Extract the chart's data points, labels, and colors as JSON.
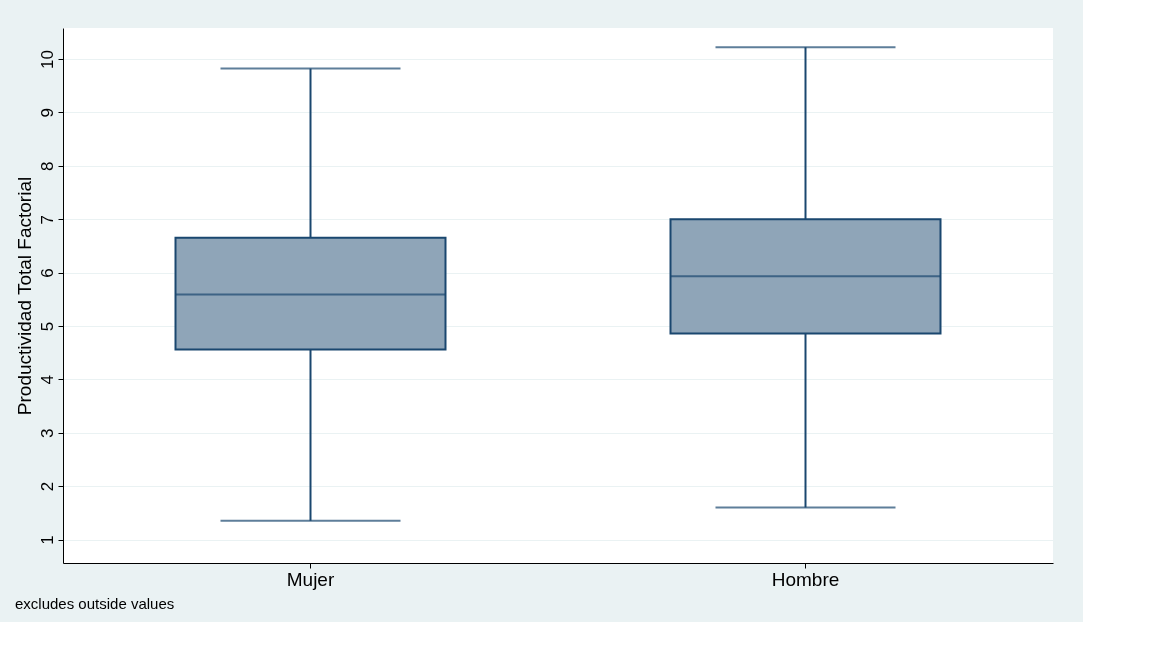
{
  "chart_data": {
    "type": "box",
    "ylabel": "Productividad Total Factorial",
    "categories": [
      "Mujer",
      "Hombre"
    ],
    "boxes": [
      {
        "low": 1.35,
        "q1": 4.56,
        "median": 5.59,
        "q3": 6.65,
        "high": 9.82
      },
      {
        "low": 1.6,
        "q1": 4.86,
        "median": 5.93,
        "q3": 7.0,
        "high": 10.22
      }
    ],
    "color": "#8fa5b8",
    "ylim": [
      0.56,
      10.58
    ],
    "yticks": [
      1,
      2,
      3,
      4,
      5,
      6,
      7,
      8,
      9,
      10
    ],
    "grid": "y",
    "annotations": [
      "excludes outside values"
    ]
  }
}
